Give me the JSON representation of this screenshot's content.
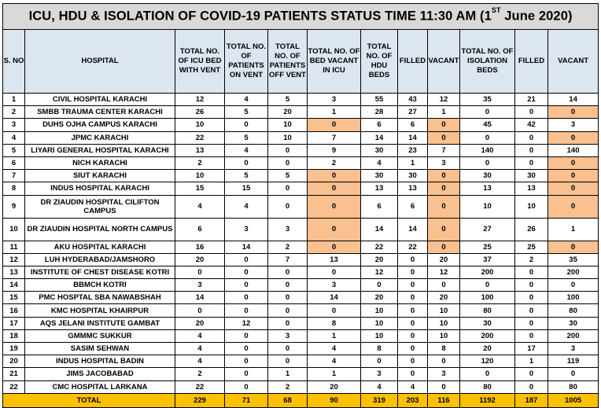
{
  "title": {
    "main": "ICU, HDU & ISOLATION OF COVID-19 PATIENTS STATUS TIME 11:30 AM (1",
    "sup": "ST",
    "tail": " June 2020)"
  },
  "headers": [
    "S. NO",
    "HOSPITAL",
    "TOTAL NO. OF ICU BED WITH VENT",
    "TOTAL NO. OF PATIENTS ON VENT",
    "TOTAL NO. OF PATIENTS OFF VENT",
    "TOTAL NO. OF BED VACANT IN ICU",
    "TOTAL NO. OF HDU BEDS",
    "FILLED",
    "VACANT",
    "TOTAL NO. OF ISOLATION BEDS",
    "FILLED",
    "VACANT"
  ],
  "highlight_color": "#fac090",
  "total_row_color": "#fcc100",
  "header_color": "#dce6f1",
  "rows": [
    {
      "cells": [
        "1",
        "CIVIL HOSPITAL KARACHI",
        "12",
        "4",
        "5",
        "3",
        "55",
        "43",
        "12",
        "35",
        "21",
        "14"
      ],
      "hl": []
    },
    {
      "cells": [
        "2",
        "SMBB TRAUMA CENTER KARACHI",
        "26",
        "5",
        "20",
        "1",
        "28",
        "27",
        "1",
        "0",
        "0",
        "0"
      ],
      "hl": [
        11
      ]
    },
    {
      "cells": [
        "3",
        "DUHS OJHA CAMPUS KARACHI",
        "10",
        "0",
        "10",
        "0",
        "6",
        "6",
        "0",
        "45",
        "42",
        "3"
      ],
      "hl": [
        5,
        8
      ]
    },
    {
      "cells": [
        "4",
        "JPMC KARACHI",
        "22",
        "5",
        "10",
        "7",
        "14",
        "14",
        "0",
        "0",
        "0",
        "0"
      ],
      "hl": [
        8,
        11
      ]
    },
    {
      "cells": [
        "5",
        "LIYARI GENERAL HOSPITAL KARACHI",
        "13",
        "4",
        "0",
        "9",
        "30",
        "23",
        "7",
        "140",
        "0",
        "140"
      ],
      "hl": []
    },
    {
      "cells": [
        "6",
        "NICH KARACHI",
        "2",
        "0",
        "0",
        "2",
        "4",
        "1",
        "3",
        "0",
        "0",
        "0"
      ],
      "hl": [
        11
      ]
    },
    {
      "cells": [
        "7",
        "SIUT KARACHI",
        "10",
        "5",
        "5",
        "0",
        "30",
        "30",
        "0",
        "30",
        "30",
        "0"
      ],
      "hl": [
        5,
        8,
        11
      ]
    },
    {
      "cells": [
        "8",
        "INDUS HOSPITAL KARACHI",
        "15",
        "15",
        "0",
        "0",
        "13",
        "13",
        "0",
        "13",
        "13",
        "0"
      ],
      "hl": [
        5,
        8,
        11
      ]
    },
    {
      "cells": [
        "9",
        "DR ZIAUDIN HOSPITAL CILIFTON CAMPUS",
        "4",
        "4",
        "0",
        "0",
        "6",
        "6",
        "0",
        "10",
        "10",
        "0"
      ],
      "hl": [
        5,
        8,
        11
      ],
      "tall": true
    },
    {
      "cells": [
        "10",
        "DR ZIAUDIN HOSPITAL NORTH CAMPUS",
        "6",
        "3",
        "3",
        "0",
        "14",
        "14",
        "0",
        "27",
        "26",
        "1"
      ],
      "hl": [
        5,
        8
      ],
      "tall": true
    },
    {
      "cells": [
        "11",
        "AKU HOSPITAL KARACHI",
        "16",
        "14",
        "2",
        "0",
        "22",
        "22",
        "0",
        "25",
        "25",
        "0"
      ],
      "hl": [
        5,
        8,
        11
      ]
    },
    {
      "cells": [
        "12",
        "LUH HYDERABAD/JAMSHORO",
        "20",
        "0",
        "7",
        "13",
        "20",
        "0",
        "20",
        "37",
        "2",
        "35"
      ],
      "hl": []
    },
    {
      "cells": [
        "13",
        "INSTITUTE OF CHEST DISEASE KOTRI",
        "0",
        "0",
        "0",
        "0",
        "12",
        "0",
        "12",
        "200",
        "0",
        "200"
      ],
      "hl": []
    },
    {
      "cells": [
        "14",
        "BBMCH KOTRI",
        "3",
        "0",
        "0",
        "3",
        "0",
        "0",
        "0",
        "0",
        "0",
        "0"
      ],
      "hl": []
    },
    {
      "cells": [
        "15",
        "PMC HOSPTAL SBA NAWABSHAH",
        "14",
        "0",
        "0",
        "14",
        "20",
        "0",
        "20",
        "100",
        "0",
        "100"
      ],
      "hl": []
    },
    {
      "cells": [
        "16",
        "KMC HOSPITAL KHAIRPUR",
        "0",
        "0",
        "0",
        "0",
        "10",
        "0",
        "10",
        "80",
        "0",
        "80"
      ],
      "hl": []
    },
    {
      "cells": [
        "17",
        "AQS JELANI INSTITUTE GAMBAT",
        "20",
        "12",
        "0",
        "8",
        "10",
        "0",
        "10",
        "30",
        "0",
        "30"
      ],
      "hl": []
    },
    {
      "cells": [
        "18",
        "GMMMC SUKKUR",
        "4",
        "0",
        "3",
        "1",
        "10",
        "0",
        "10",
        "200",
        "0",
        "200"
      ],
      "hl": []
    },
    {
      "cells": [
        "19",
        "SASIM SEHWAN",
        "4",
        "0",
        "0",
        "4",
        "8",
        "0",
        "8",
        "20",
        "17",
        "3"
      ],
      "hl": []
    },
    {
      "cells": [
        "20",
        "INDUS HOSPITAL BADIN",
        "4",
        "0",
        "0",
        "4",
        "0",
        "0",
        "0",
        "120",
        "1",
        "119"
      ],
      "hl": []
    },
    {
      "cells": [
        "21",
        "JIMS JACOBABAD",
        "2",
        "0",
        "1",
        "1",
        "3",
        "0",
        "3",
        "0",
        "0",
        "0"
      ],
      "hl": []
    },
    {
      "cells": [
        "22",
        "CMC HOSPITAL LARKANA",
        "22",
        "0",
        "2",
        "20",
        "4",
        "4",
        "0",
        "80",
        "0",
        "80"
      ],
      "hl": []
    }
  ],
  "total": [
    "TOTAL",
    "229",
    "71",
    "68",
    "90",
    "319",
    "203",
    "116",
    "1192",
    "187",
    "1005"
  ]
}
